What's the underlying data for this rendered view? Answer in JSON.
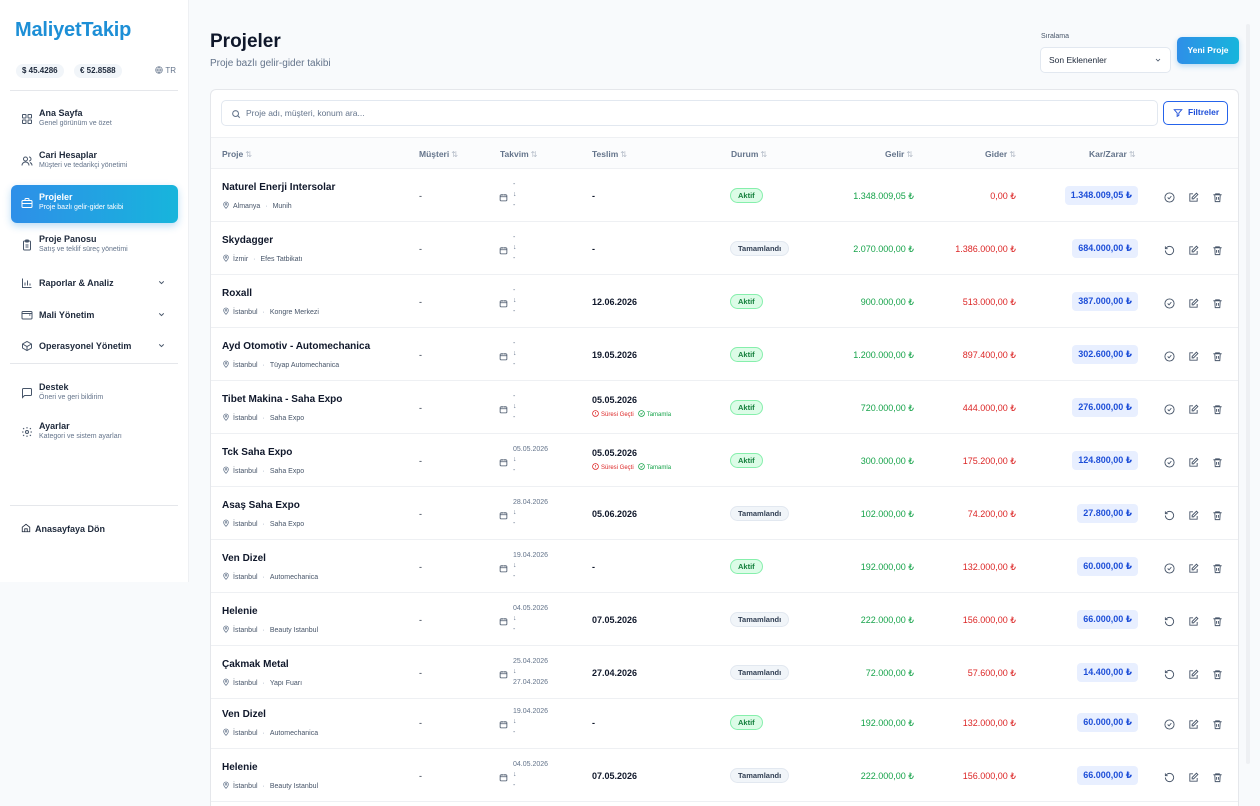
{
  "app": {
    "logo": "MaliyetTakip",
    "rates": {
      "usd": "$ 45.4286",
      "eur": "€ 52.8588",
      "lang": "TR"
    }
  },
  "sidebar": {
    "items": [
      {
        "title": "Ana Sayfa",
        "sub": "Genel görünüm ve özet",
        "icon": "grid-icon"
      },
      {
        "title": "Cari Hesaplar",
        "sub": "Müşteri ve tedarikçi yönetimi",
        "icon": "users-icon"
      },
      {
        "title": "Projeler",
        "sub": "Proje bazlı gelir-gider takibi",
        "icon": "briefcase-icon",
        "active": true
      },
      {
        "title": "Proje Panosu",
        "sub": "Satış ve teklif süreç yönetimi",
        "icon": "clipboard-icon"
      }
    ],
    "groups": [
      {
        "title": "Raporlar & Analiz",
        "icon": "bar-chart-icon"
      },
      {
        "title": "Mali Yönetim",
        "icon": "wallet-icon"
      },
      {
        "title": "Operasyonel Yönetim",
        "icon": "box-icon"
      }
    ],
    "bottom": [
      {
        "title": "Destek",
        "sub": "Öneri ve geri bildirim",
        "icon": "message-icon"
      },
      {
        "title": "Ayarlar",
        "sub": "Kategori ve sistem ayarları",
        "icon": "settings-icon"
      }
    ],
    "home": "Anasayfaya Dön"
  },
  "header": {
    "title": "Projeler",
    "subtitle": "Proje bazlı gelir-gider takibi",
    "sort_label": "Sıralama",
    "sort_value": "Son Eklenenler",
    "new_button": "Yeni Proje"
  },
  "toolbar": {
    "search_placeholder": "Proje adı, müşteri, konum ara...",
    "filter_button": "Filtreler"
  },
  "table": {
    "columns": [
      "Proje",
      "Müşteri",
      "Takvim",
      "Teslim",
      "Durum",
      "Gelir",
      "Gider",
      "Kar/Zarar"
    ],
    "warn_expired": "Süresi Geçti",
    "warn_complete": "Tamamla",
    "rows": [
      {
        "name": "Naturel Enerji Intersolar",
        "city": "Almanya",
        "venue": "Munih",
        "customer": "-",
        "cal_start": "-",
        "cal_end": "-",
        "delivery": "-",
        "warn": false,
        "status": "Aktif",
        "status_type": "aktif",
        "income": "1.348.009,05 ₺",
        "expense": "0,00 ₺",
        "profit": "1.348.009,05 ₺",
        "first_action": "check-circle-icon"
      },
      {
        "name": "Skydagger",
        "city": "İzmir",
        "venue": "Efes Tatbikatı",
        "customer": "-",
        "cal_start": "-",
        "cal_end": "-",
        "delivery": "-",
        "warn": false,
        "status": "Tamamlandı",
        "status_type": "tam",
        "income": "2.070.000,00 ₺",
        "expense": "1.386.000,00 ₺",
        "profit": "684.000,00 ₺",
        "first_action": "undo-icon"
      },
      {
        "name": "Roxall",
        "city": "İstanbul",
        "venue": "Kongre Merkezi",
        "customer": "-",
        "cal_start": "-",
        "cal_end": "-",
        "delivery": "12.06.2026",
        "warn": false,
        "status": "Aktif",
        "status_type": "aktif",
        "income": "900.000,00 ₺",
        "expense": "513.000,00 ₺",
        "profit": "387.000,00 ₺",
        "first_action": "check-circle-icon"
      },
      {
        "name": "Ayd Otomotiv - Automechanica",
        "city": "İstanbul",
        "venue": "Tüyap Automechanica",
        "customer": "-",
        "cal_start": "-",
        "cal_end": "-",
        "delivery": "19.05.2026",
        "warn": false,
        "status": "Aktif",
        "status_type": "aktif",
        "income": "1.200.000,00 ₺",
        "expense": "897.400,00 ₺",
        "profit": "302.600,00 ₺",
        "first_action": "check-circle-icon"
      },
      {
        "name": "Tibet Makina - Saha Expo",
        "city": "İstanbul",
        "venue": "Saha Expo",
        "customer": "-",
        "cal_start": "-",
        "cal_end": "-",
        "delivery": "05.05.2026",
        "warn": true,
        "status": "Aktif",
        "status_type": "aktif",
        "income": "720.000,00 ₺",
        "expense": "444.000,00 ₺",
        "profit": "276.000,00 ₺",
        "first_action": "check-circle-icon"
      },
      {
        "name": "Tck Saha Expo",
        "city": "İstanbul",
        "venue": "Saha Expo",
        "customer": "-",
        "cal_start": "05.05.2026",
        "cal_end": "-",
        "delivery": "05.05.2026",
        "warn": true,
        "status": "Aktif",
        "status_type": "aktif",
        "income": "300.000,00 ₺",
        "expense": "175.200,00 ₺",
        "profit": "124.800,00 ₺",
        "first_action": "check-circle-icon"
      },
      {
        "name": "Asaş Saha Expo",
        "city": "İstanbul",
        "venue": "Saha Expo",
        "customer": "-",
        "cal_start": "28.04.2026",
        "cal_end": "-",
        "delivery": "05.06.2026",
        "warn": false,
        "status": "Tamamlandı",
        "status_type": "tam",
        "income": "102.000,00 ₺",
        "expense": "74.200,00 ₺",
        "profit": "27.800,00 ₺",
        "first_action": "undo-icon"
      },
      {
        "name": "Ven Dizel",
        "city": "İstanbul",
        "venue": "Automechanica",
        "customer": "-",
        "cal_start": "19.04.2026",
        "cal_end": "-",
        "delivery": "-",
        "warn": false,
        "status": "Aktif",
        "status_type": "aktif",
        "income": "192.000,00 ₺",
        "expense": "132.000,00 ₺",
        "profit": "60.000,00 ₺",
        "first_action": "check-circle-icon"
      },
      {
        "name": "Helenie",
        "city": "İstanbul",
        "venue": "Beauty Istanbul",
        "customer": "-",
        "cal_start": "04.05.2026",
        "cal_end": "-",
        "delivery": "07.05.2026",
        "warn": false,
        "status": "Tamamlandı",
        "status_type": "tam",
        "income": "222.000,00 ₺",
        "expense": "156.000,00 ₺",
        "profit": "66.000,00 ₺",
        "first_action": "undo-icon"
      },
      {
        "name": "Çakmak Metal",
        "city": "İstanbul",
        "venue": "Yapı Fuarı",
        "customer": "-",
        "cal_start": "25.04.2026",
        "cal_end": "27.04.2026",
        "delivery": "27.04.2026",
        "warn": false,
        "status": "Tamamlandı",
        "status_type": "tam",
        "income": "72.000,00 ₺",
        "expense": "57.600,00 ₺",
        "profit": "14.400,00 ₺",
        "first_action": "undo-icon"
      },
      {
        "name": "Ven Dizel",
        "city": "İstanbul",
        "venue": "Automechanica",
        "customer": "-",
        "cal_start": "19.04.2026",
        "cal_end": "-",
        "delivery": "-",
        "warn": false,
        "status": "Aktif",
        "status_type": "aktif",
        "income": "192.000,00 ₺",
        "expense": "132.000,00 ₺",
        "profit": "60.000,00 ₺",
        "first_action": "check-circle-icon"
      },
      {
        "name": "Helenie",
        "city": "İstanbul",
        "venue": "Beauty Istanbul",
        "customer": "-",
        "cal_start": "04.05.2026",
        "cal_end": "-",
        "delivery": "07.05.2026",
        "warn": false,
        "status": "Tamamlandı",
        "status_type": "tam",
        "income": "222.000,00 ₺",
        "expense": "156.000,00 ₺",
        "profit": "66.000,00 ₺",
        "first_action": "undo-icon"
      }
    ]
  }
}
